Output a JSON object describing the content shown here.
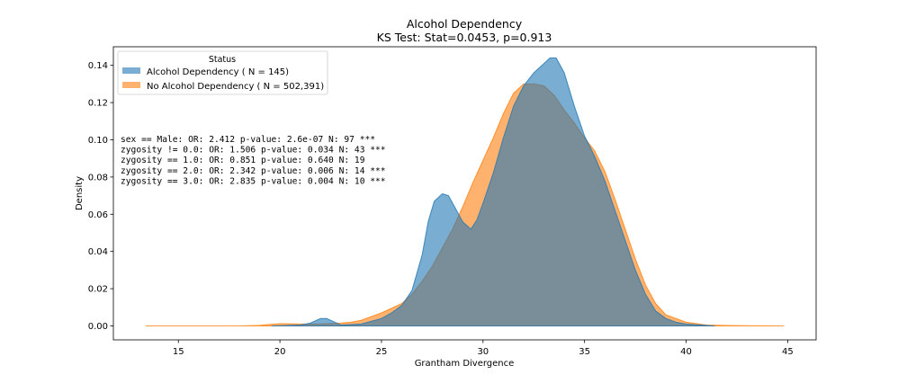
{
  "chart_data": {
    "type": "area",
    "title": "Alcohol Dependency",
    "subtitle": "KS Test: Stat=0.0453, p=0.913",
    "xlabel": "Grantham Divergence",
    "ylabel": "Density",
    "xlim": [
      11.8,
      46.4
    ],
    "ylim": [
      -0.0075,
      0.15
    ],
    "xticks": [
      15,
      20,
      25,
      30,
      35,
      40,
      45
    ],
    "yticks": [
      0.0,
      0.02,
      0.04,
      0.06,
      0.08,
      0.1,
      0.12,
      0.14
    ],
    "ytick_labels": [
      "0.00",
      "0.02",
      "0.04",
      "0.06",
      "0.08",
      "0.10",
      "0.12",
      "0.14"
    ],
    "grid": false,
    "legend": {
      "title": "Status",
      "placement": "top-left",
      "entries": [
        {
          "label": "Alcohol Dependency ( N = 145)",
          "color": "#1f77b4"
        },
        {
          "label": "No Alcohol Dependency ( N = 502,391)",
          "color": "#ff7f0e"
        }
      ]
    },
    "annotations": [
      "sex == Male: OR: 2.412 p-value: 2.6e-07 N: 97 ***",
      "zygosity != 0.0: OR: 1.506 p-value: 0.034 N: 43 ***",
      "zygosity == 1.0: OR: 0.851 p-value: 0.640 N: 19",
      "zygosity == 2.0: OR: 2.342 p-value: 0.006 N: 14 ***",
      "zygosity == 3.0: OR: 2.835 p-value: 0.004 N: 10 ***"
    ],
    "series": [
      {
        "name": "No Alcohol Dependency ( N = 502,391)",
        "color": "#ff7f0e",
        "opacity": 0.6,
        "x": [
          13.4,
          18,
          19,
          19.5,
          20,
          21,
          22,
          23,
          23.5,
          24,
          25,
          26,
          26.5,
          27,
          27.5,
          28,
          28.5,
          29,
          29.5,
          30,
          30.5,
          31,
          31.5,
          32,
          32.5,
          33,
          33.5,
          34,
          34.5,
          35,
          35.5,
          36,
          36.5,
          37,
          37.5,
          38,
          38.5,
          39,
          40,
          41,
          42,
          43,
          44.8
        ],
        "y": [
          0.0,
          0.0,
          0.0003,
          0.0008,
          0.0012,
          0.001,
          0.001,
          0.0015,
          0.002,
          0.003,
          0.007,
          0.012,
          0.017,
          0.024,
          0.032,
          0.042,
          0.052,
          0.064,
          0.077,
          0.089,
          0.101,
          0.114,
          0.125,
          0.13,
          0.13,
          0.129,
          0.124,
          0.116,
          0.109,
          0.101,
          0.094,
          0.083,
          0.068,
          0.052,
          0.036,
          0.022,
          0.012,
          0.006,
          0.002,
          0.0005,
          0.0002,
          0.0001,
          0.0
        ]
      },
      {
        "name": "Alcohol Dependency ( N = 145)",
        "color": "#1f77b4",
        "opacity": 0.6,
        "x": [
          19.6,
          21,
          21.5,
          22,
          22.3,
          22.7,
          23,
          24,
          25,
          25.5,
          26,
          26.5,
          27,
          27.3,
          27.6,
          28,
          28.3,
          28.6,
          29,
          29.4,
          29.7,
          30,
          30.5,
          31,
          31.5,
          32,
          32.5,
          33,
          33.3,
          33.6,
          34,
          34.5,
          35,
          35.5,
          36,
          36.5,
          37,
          37.5,
          38,
          38.5,
          39,
          39.5,
          40,
          41.4
        ],
        "y": [
          0.0,
          0.0005,
          0.0015,
          0.004,
          0.004,
          0.002,
          0.0005,
          0.001,
          0.004,
          0.007,
          0.011,
          0.019,
          0.038,
          0.056,
          0.067,
          0.071,
          0.07,
          0.064,
          0.056,
          0.052,
          0.057,
          0.066,
          0.082,
          0.101,
          0.118,
          0.129,
          0.136,
          0.141,
          0.144,
          0.144,
          0.136,
          0.118,
          0.102,
          0.091,
          0.078,
          0.062,
          0.046,
          0.03,
          0.017,
          0.008,
          0.004,
          0.002,
          0.001,
          0.0
        ]
      }
    ]
  }
}
